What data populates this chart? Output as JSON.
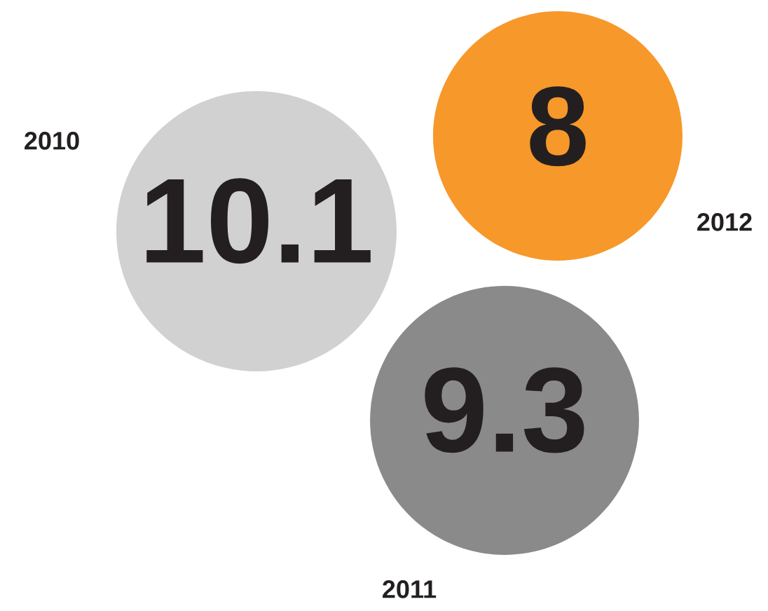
{
  "chart_data": {
    "type": "other",
    "categories": [
      "2010",
      "2011",
      "2012"
    ],
    "values": [
      10.1,
      9.3,
      8
    ],
    "colors": [
      "#d1d1d1",
      "#8a8a8a",
      "#f7982a"
    ],
    "data_labels": true
  }
}
